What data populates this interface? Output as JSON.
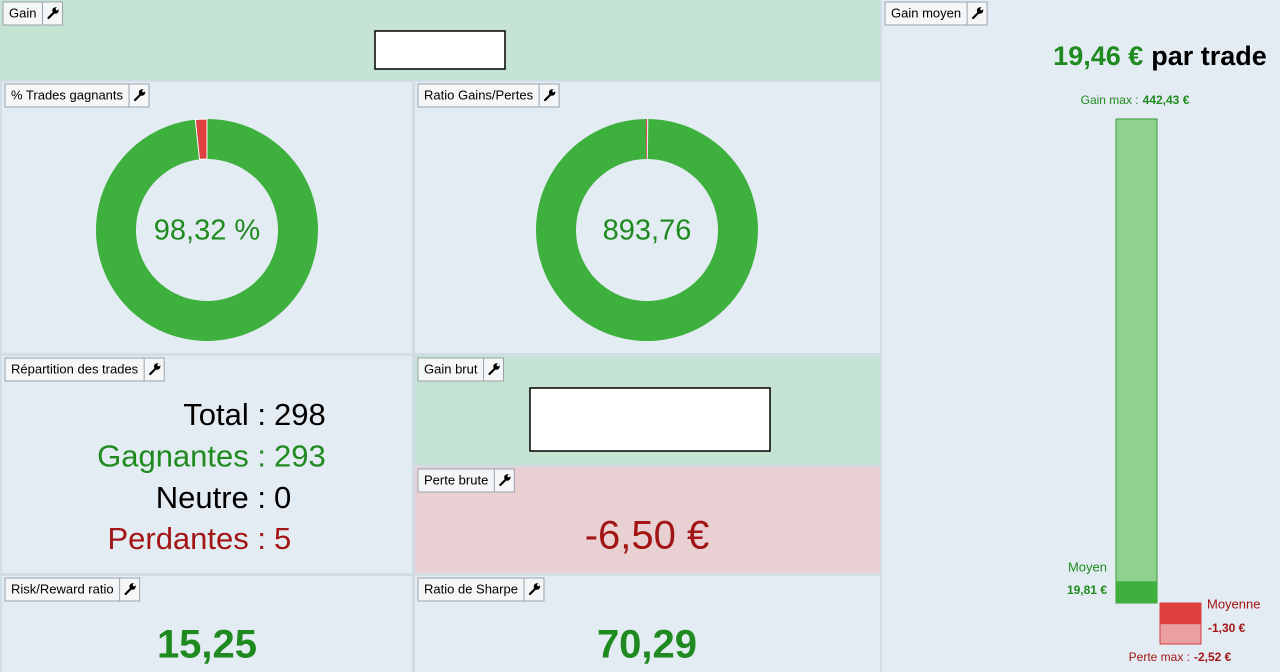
{
  "panels": {
    "gain": {
      "title": "Gain"
    },
    "win_rate": {
      "title": "% Trades gagnants",
      "value": 98.32,
      "label": "98,32 %"
    },
    "gain_loss_ratio": {
      "title": "Ratio Gains/Pertes",
      "value": 893.76,
      "label": "893,76"
    },
    "trade_breakdown": {
      "title": "Répartition des trades",
      "rows": [
        {
          "label": "Total :",
          "value": 298
        },
        {
          "label": "Gagnantes :",
          "value": 293
        },
        {
          "label": "Neutre :",
          "value": 0
        },
        {
          "label": "Perdantes :",
          "value": 5
        }
      ]
    },
    "gross_gain": {
      "title": "Gain brut"
    },
    "gross_loss": {
      "title": "Perte brute",
      "value": "-6,50 €"
    },
    "risk_reward": {
      "title": "Risk/Reward ratio",
      "value": "15,25"
    },
    "sharpe": {
      "title": "Ratio de Sharpe",
      "value": "70,29"
    },
    "average_gain": {
      "title": "Gain moyen",
      "label": "19,46 €",
      "suffix": "par trade",
      "max_gain": {
        "caption": "Gain max :",
        "value": 442.43,
        "label": "442,43 €"
      },
      "mean_win": {
        "caption": "Moyen",
        "value": 19.81,
        "label": "19,81 €"
      },
      "mean_loss": {
        "caption": "Moyenne",
        "value": -1.3,
        "label": "-1,30 €"
      },
      "max_loss": {
        "caption": "Perte max :",
        "value": -2.52,
        "label": "-2,52 €"
      }
    }
  }
}
